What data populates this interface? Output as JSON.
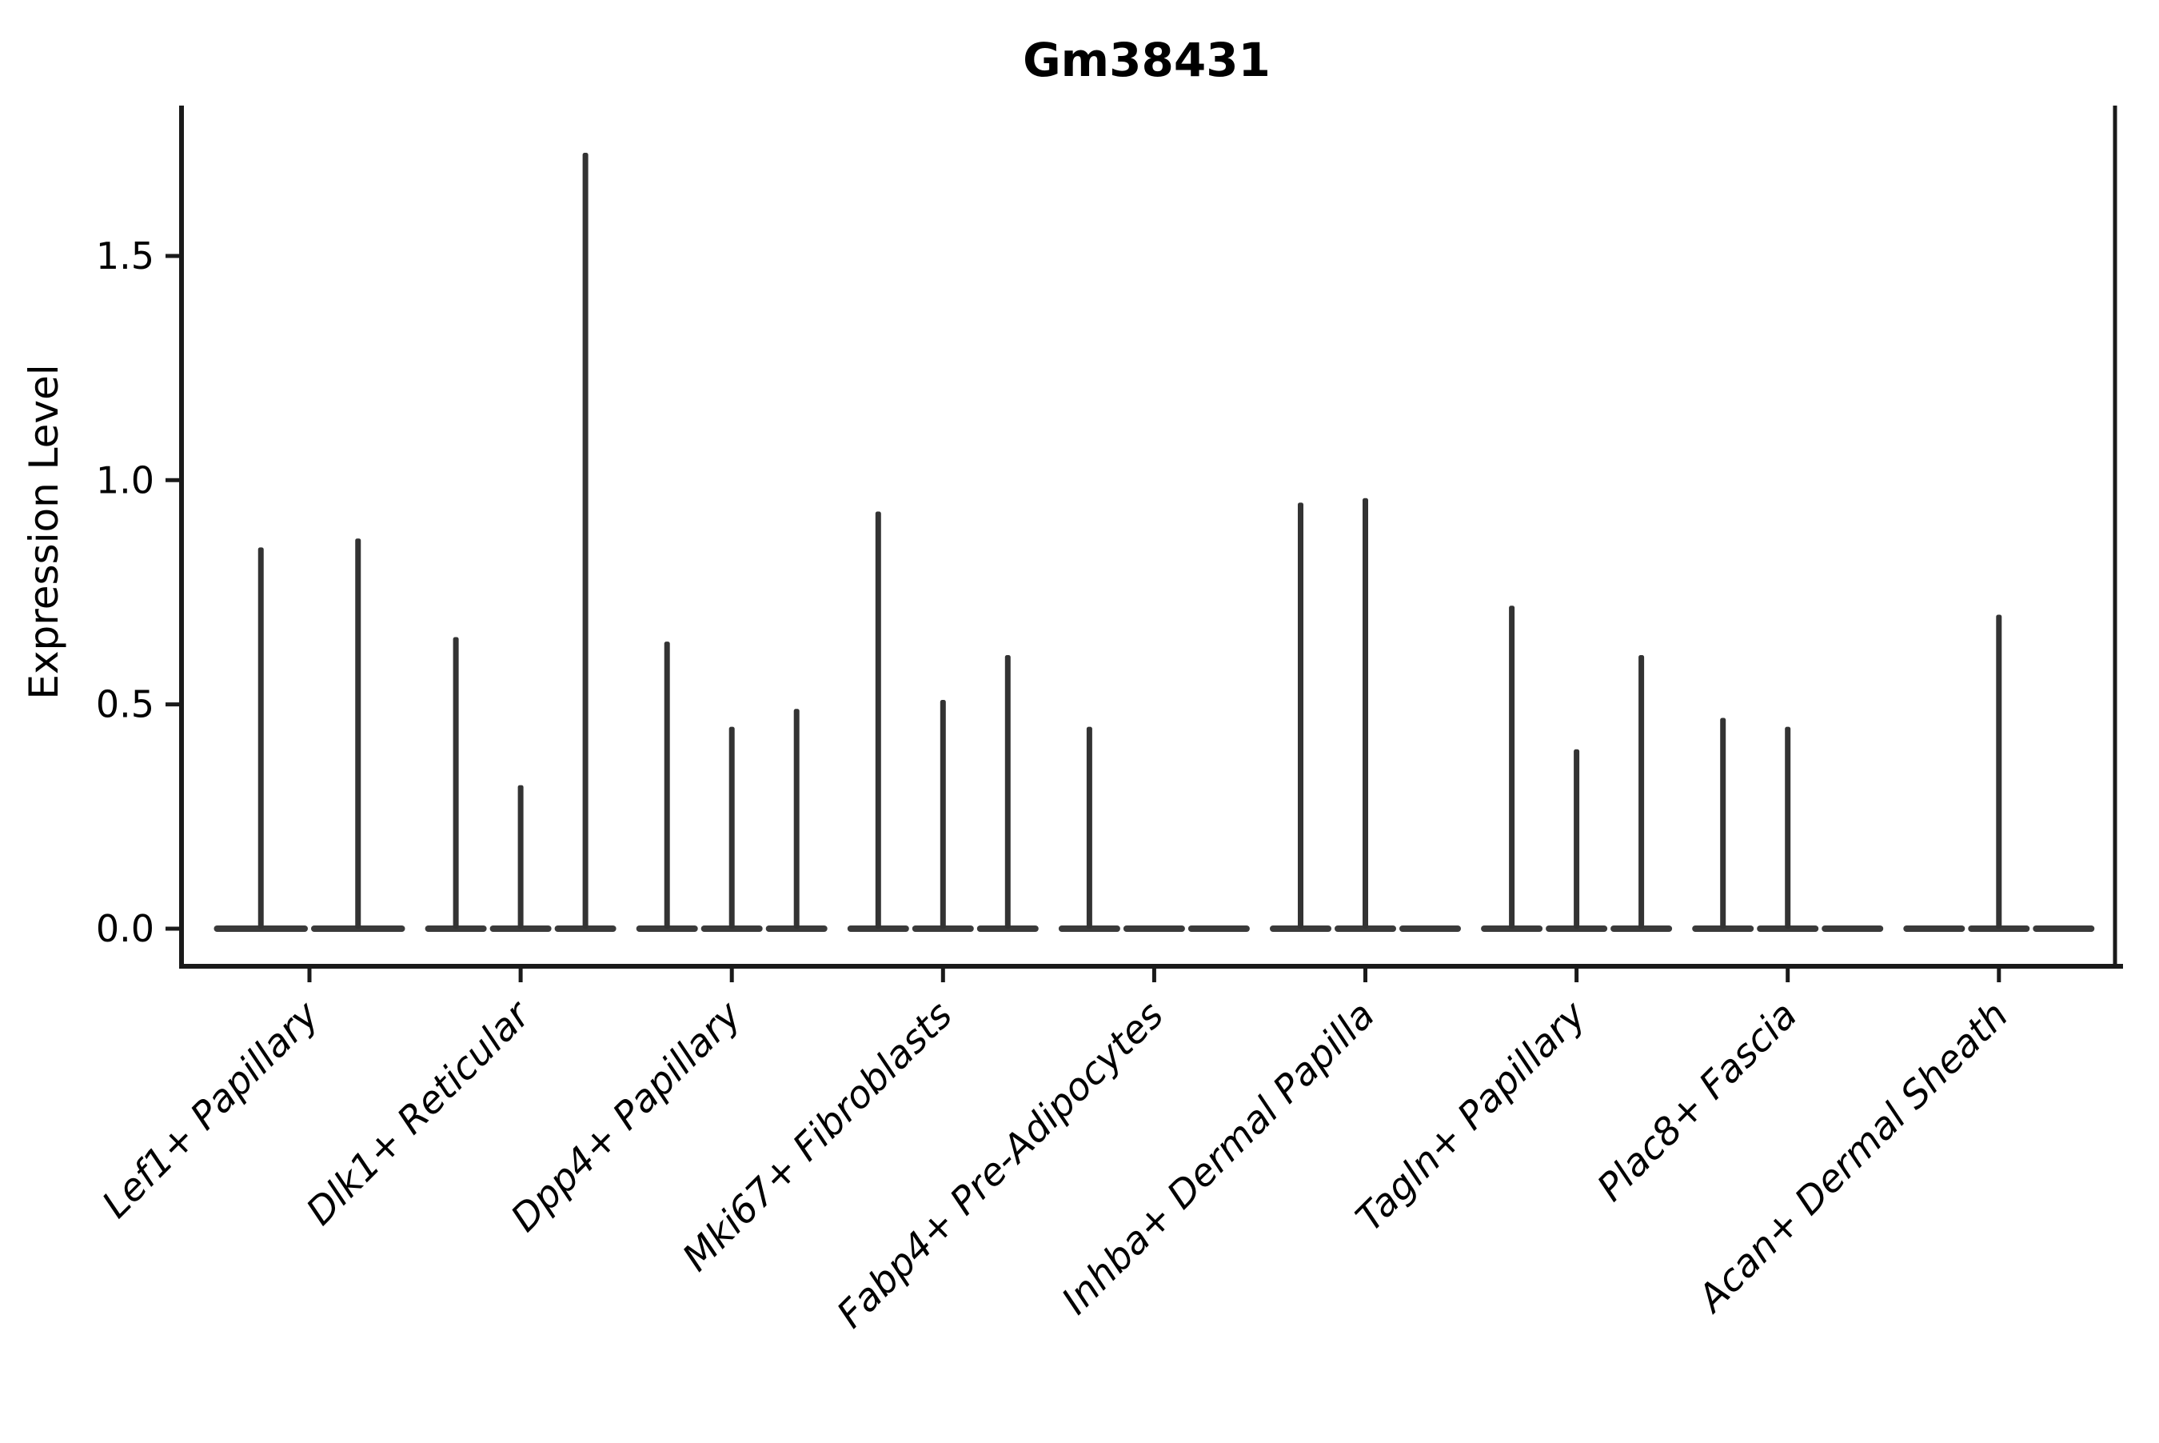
{
  "title": "Gm38431",
  "y_axis": {
    "label": "Expression Level",
    "tick_labels": [
      "0.0",
      "0.5",
      "1.0",
      "1.5"
    ],
    "tick_values": [
      0.0,
      0.5,
      1.0,
      1.5
    ]
  },
  "colors": {
    "axis": "#1a1a1a",
    "violin": "#333333",
    "text": "#000000",
    "background": "#ffffff"
  },
  "chart_data": {
    "type": "violin",
    "title": "Gm38431",
    "xlabel": "",
    "ylabel": "Expression Level",
    "ylim": [
      0,
      1.84
    ],
    "grid": false,
    "legend": false,
    "note": "Each category holds narrow spike violins; flat base at 0 expression, spike height = max expression",
    "categories": [
      "Lef1+ Papillary",
      "Dlk1+ Reticular",
      "Dpp4+ Papillary",
      "Mki67+ Fibroblasts",
      "Fabp4+ Pre-Adipocytes",
      "Inhba+ Dermal Papilla",
      "Tagln+ Papillary",
      "Plac8+ Fascia",
      "Acan+ Dermal Sheath"
    ],
    "groups": [
      {
        "label": "Lef1+ Papillary",
        "violin_max_values": [
          0.85,
          0.87
        ]
      },
      {
        "label": "Dlk1+ Reticular",
        "violin_max_values": [
          0.65,
          0.32,
          1.73
        ]
      },
      {
        "label": "Dpp4+ Papillary",
        "violin_max_values": [
          0.64,
          0.45,
          0.49
        ]
      },
      {
        "label": "Mki67+ Fibroblasts",
        "violin_max_values": [
          0.93,
          0.51,
          0.61
        ]
      },
      {
        "label": "Fabp4+ Pre-Adipocytes",
        "violin_max_values": [
          0.45,
          0,
          0
        ]
      },
      {
        "label": "Inhba+ Dermal Papilla",
        "violin_max_values": [
          0.95,
          0.96,
          0
        ]
      },
      {
        "label": "Tagln+ Papillary",
        "violin_max_values": [
          0.72,
          0.4,
          0.61
        ]
      },
      {
        "label": "Plac8+ Fascia",
        "violin_max_values": [
          0.47,
          0.45,
          0
        ]
      },
      {
        "label": "Acan+ Dermal Sheath",
        "violin_max_values": [
          0,
          0.7,
          0
        ]
      }
    ]
  }
}
